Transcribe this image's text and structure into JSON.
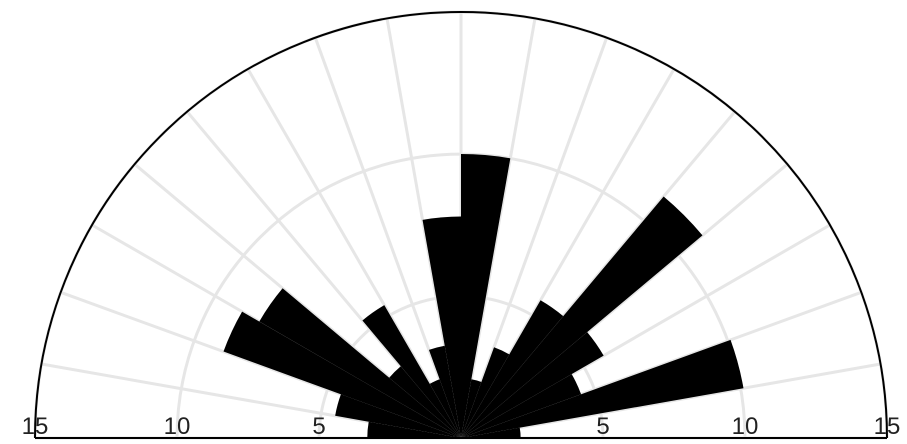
{
  "chart_data": {
    "type": "polar-histogram",
    "bins": [
      0,
      10,
      20,
      30,
      40,
      50,
      60,
      70,
      80,
      90,
      100,
      110,
      120,
      130,
      140,
      150,
      160,
      170,
      180
    ],
    "values": [
      2.1,
      10.1,
      4.5,
      5.8,
      11.1,
      5.6,
      3.4,
      2.1,
      10,
      7.8,
      3.3,
      2.2,
      5.4,
      3.3,
      8.2,
      8.9,
      4.5,
      3.3
    ],
    "color": "#000000",
    "rlim": [
      0,
      15
    ],
    "rticks": [
      5,
      10,
      15
    ],
    "grid": true
  }
}
